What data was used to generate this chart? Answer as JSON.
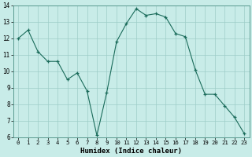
{
  "x": [
    0,
    1,
    2,
    3,
    4,
    5,
    6,
    7,
    8,
    9,
    10,
    11,
    12,
    13,
    14,
    15,
    16,
    17,
    18,
    19,
    20,
    21,
    22,
    23
  ],
  "y": [
    12.0,
    12.5,
    11.2,
    10.6,
    10.6,
    9.5,
    9.9,
    8.8,
    6.1,
    8.7,
    11.8,
    12.9,
    13.8,
    13.4,
    13.5,
    13.3,
    12.3,
    12.1,
    10.1,
    8.6,
    8.6,
    7.9,
    7.2,
    6.2
  ],
  "line_color": "#1a6b5a",
  "marker_color": "#1a6b5a",
  "bg_color": "#c8ece8",
  "grid_color": "#9dcdc8",
  "xlabel": "Humidex (Indice chaleur)",
  "ylim": [
    6,
    14
  ],
  "xlim": [
    -0.5,
    23.5
  ],
  "yticks": [
    6,
    7,
    8,
    9,
    10,
    11,
    12,
    13,
    14
  ],
  "xticks": [
    0,
    1,
    2,
    3,
    4,
    5,
    6,
    7,
    8,
    9,
    10,
    11,
    12,
    13,
    14,
    15,
    16,
    17,
    18,
    19,
    20,
    21,
    22,
    23
  ],
  "xlabel_fontsize": 6.5,
  "tick_fontsize": 5.2,
  "ytick_fontsize": 5.5
}
